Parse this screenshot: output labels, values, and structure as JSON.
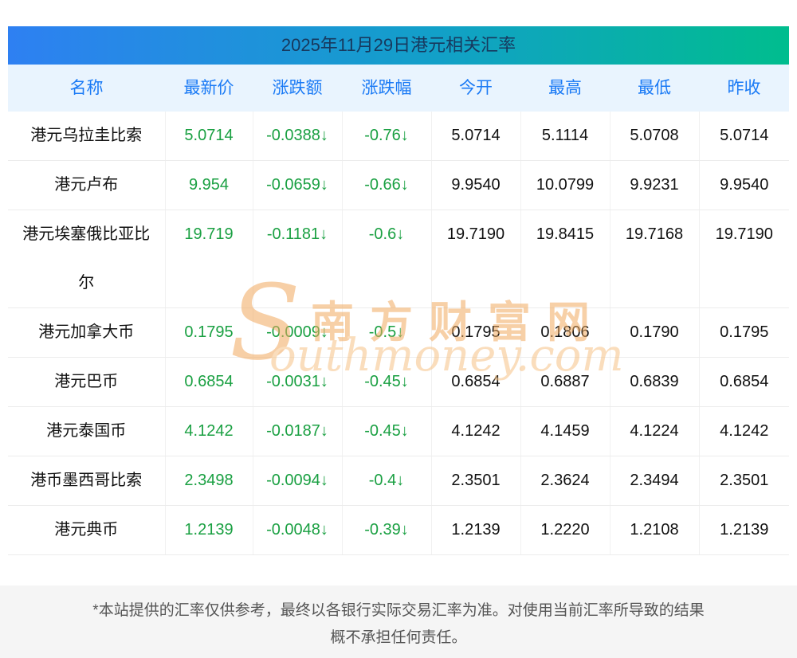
{
  "title": "2025年11月29日港元相关汇率",
  "colors": {
    "title_gradient_left": "#2e80f2",
    "title_gradient_right": "#00bd8e",
    "title_text": "#17395e",
    "header_bg": "#e9f4fe",
    "header_text": "#1a7af5",
    "value_green": "#1aa042",
    "value_black": "#111111",
    "row_border": "#ececec",
    "footer_bg": "#f5f5f5",
    "footer_text": "#555555",
    "watermark_orange": "#f2a95f"
  },
  "chart_data": {
    "type": "table",
    "title": "2025年11月29日港元相关汇率",
    "columns": [
      "名称",
      "最新价",
      "涨跌额",
      "涨跌幅",
      "今开",
      "最高",
      "最低",
      "昨收"
    ],
    "rows": [
      [
        "港元乌拉圭比索",
        "5.0714",
        "-0.0388↓",
        "-0.76↓",
        "5.0714",
        "5.1114",
        "5.0708",
        "5.0714"
      ],
      [
        "港元卢布",
        "9.954",
        "-0.0659↓",
        "-0.66↓",
        "9.9540",
        "10.0799",
        "9.9231",
        "9.9540"
      ],
      [
        "港元埃塞俄比亚比尔",
        "19.719",
        "-0.1181↓",
        "-0.6↓",
        "19.7190",
        "19.8415",
        "19.7168",
        "19.7190"
      ],
      [
        "港元加拿大币",
        "0.1795",
        "-0.0009↓",
        "-0.5↓",
        "0.1795",
        "0.1806",
        "0.1790",
        "0.1795"
      ],
      [
        "港元巴币",
        "0.6854",
        "-0.0031↓",
        "-0.45↓",
        "0.6854",
        "0.6887",
        "0.6839",
        "0.6854"
      ],
      [
        "港元泰国币",
        "4.1242",
        "-0.0187↓",
        "-0.45↓",
        "4.1242",
        "4.1459",
        "4.1224",
        "4.1242"
      ],
      [
        "港币墨西哥比索",
        "2.3498",
        "-0.0094↓",
        "-0.4↓",
        "2.3501",
        "2.3624",
        "2.3494",
        "2.3501"
      ],
      [
        "港元典币",
        "1.2139",
        "-0.0048↓",
        "-0.39↓",
        "1.2139",
        "1.2220",
        "1.2108",
        "1.2139"
      ]
    ]
  },
  "watermark": {
    "initial": "S",
    "cn": "南方财富网",
    "en": "outhmoney.com"
  },
  "footer": {
    "line1": "*本站提供的汇率仅供参考，最终以各银行实际交易汇率为准。对使用当前汇率所导致的结果",
    "line2": "概不承担任何责任。"
  }
}
